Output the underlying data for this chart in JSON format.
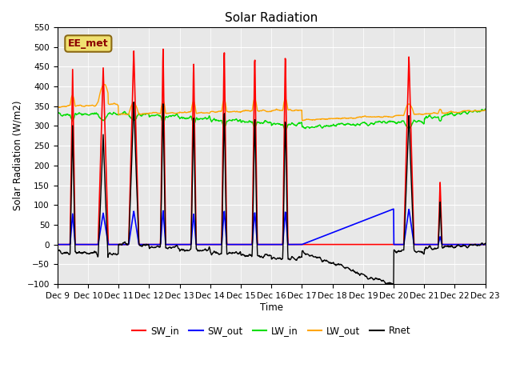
{
  "title": "Solar Radiation",
  "ylabel": "Solar Radiation (W/m2)",
  "xlabel": "Time",
  "ylim": [
    -100,
    550
  ],
  "yticks": [
    -100,
    -50,
    0,
    50,
    100,
    150,
    200,
    250,
    300,
    350,
    400,
    450,
    500,
    550
  ],
  "xlim": [
    0,
    336
  ],
  "xtick_labels": [
    "Dec 9",
    "Dec 10",
    "Dec 11",
    "Dec 12",
    "Dec 13",
    "Dec 14",
    "Dec 15",
    "Dec 16",
    "Dec 17",
    "Dec 18",
    "Dec 19",
    "Dec 20",
    "Dec 21",
    "Dec 22",
    "Dec 23"
  ],
  "xtick_positions": [
    0,
    24,
    48,
    72,
    96,
    120,
    144,
    168,
    192,
    216,
    240,
    264,
    288,
    312,
    336
  ],
  "bg_color": "#e8e8e8",
  "annotation_text": "EE_met",
  "annotation_box_color": "#f0e070",
  "series_colors": {
    "SW_in": "#ff0000",
    "SW_out": "#0000ff",
    "LW_in": "#00dd00",
    "LW_out": "#ffa500",
    "Rnet": "#000000"
  },
  "legend_entries": [
    "SW_in",
    "SW_out",
    "LW_in",
    "LW_out",
    "Rnet"
  ]
}
